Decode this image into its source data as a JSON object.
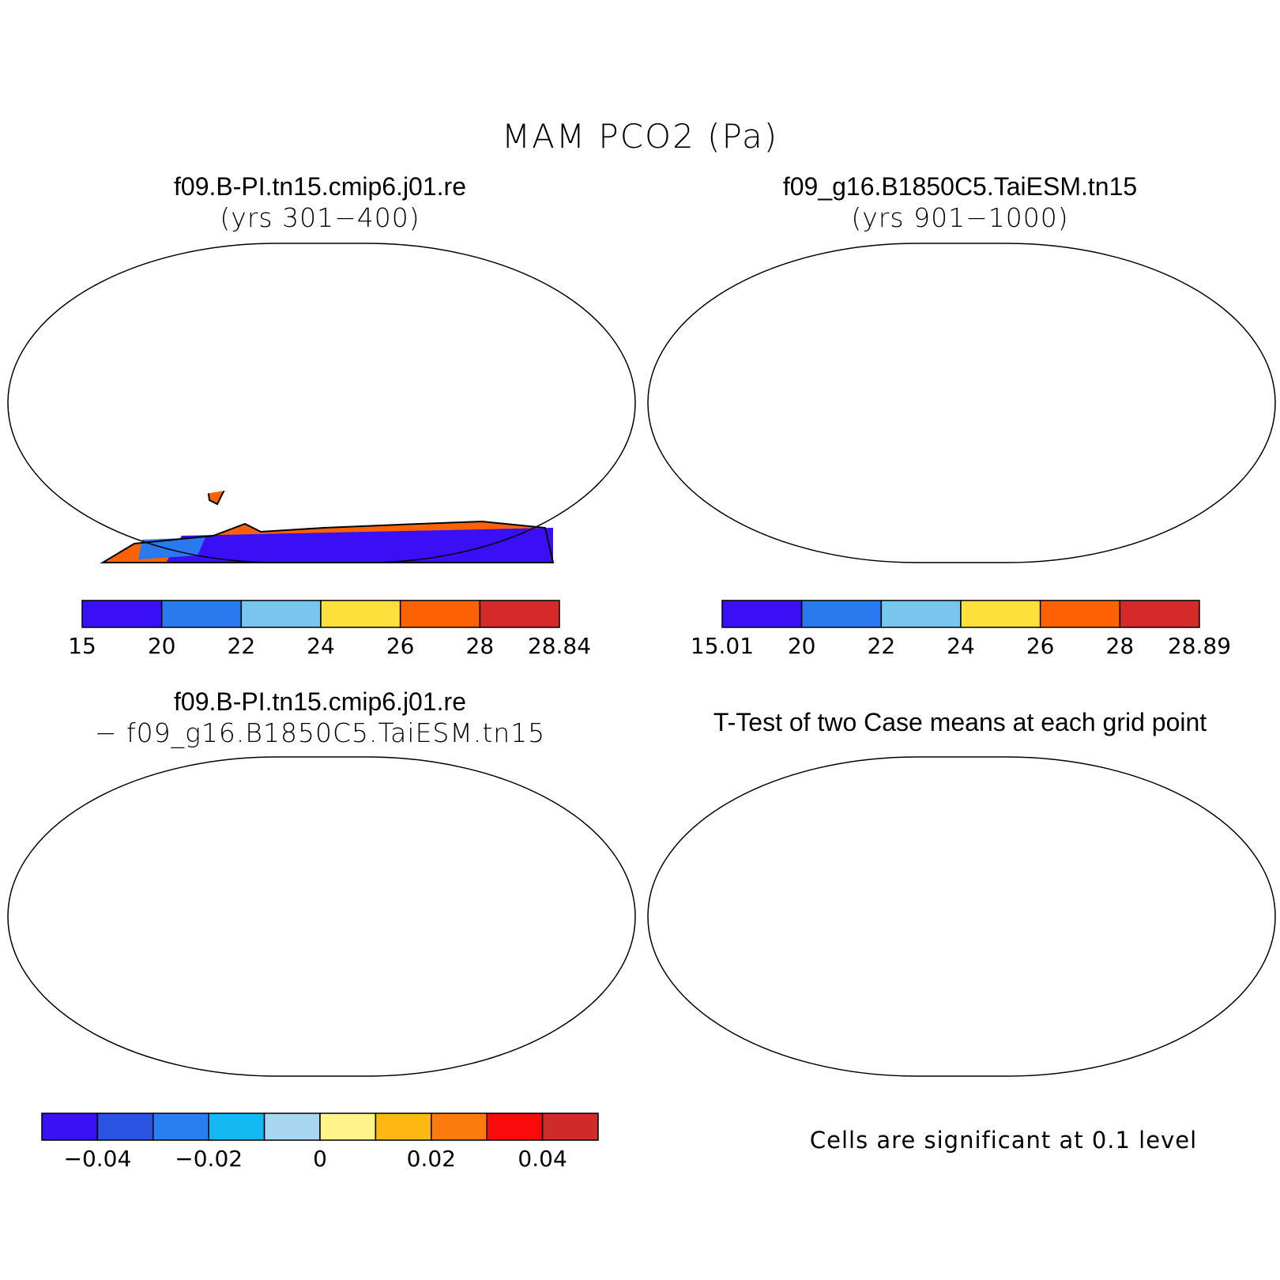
{
  "title": "MAM PCO2 (Pa)",
  "panels": [
    {
      "id": "case1",
      "title": "f09.B-PI.tn15.cmip6.j01.re",
      "subtitle": "(yrs 301−400)"
    },
    {
      "id": "case2",
      "title": "f09_g16.B1850C5.TaiESM.tn15",
      "subtitle": "(yrs 901−1000)"
    },
    {
      "id": "diff",
      "title": "f09.B-PI.tn15.cmip6.j01.re",
      "subtitle": "− f09_g16.B1850C5.TaiESM.tn15"
    },
    {
      "id": "ttest",
      "title": "T-Test of two Case means at each grid point",
      "subtitle": ""
    }
  ],
  "ttest_note": "Cells are significant at 0.1 level",
  "colors": {
    "mean_scale": [
      "#3b0ff5",
      "#2a79ee",
      "#78c6ee",
      "#fde13a",
      "#fc6203",
      "#d42a2a"
    ],
    "diff_scale": [
      "#3a10f5",
      "#2b52e0",
      "#2880f0",
      "#14b8f3",
      "#a9d7f1",
      "#fff38a",
      "#fdb813",
      "#fc7a0e",
      "#fb0a0a",
      "#d02b2b"
    ],
    "significant": "#fb0606"
  },
  "chart_data": [
    {
      "type": "map",
      "panel": "case1",
      "colorbar_labels": [
        "15",
        "20",
        "22",
        "24",
        "26",
        "28",
        "28.84"
      ],
      "levels": [
        15,
        20,
        22,
        24,
        26,
        28,
        28.84
      ]
    },
    {
      "type": "map",
      "panel": "case2",
      "colorbar_labels": [
        "15.01",
        "20",
        "22",
        "24",
        "26",
        "28",
        "28.89"
      ],
      "levels": [
        15.01,
        20,
        22,
        24,
        26,
        28,
        28.89
      ]
    },
    {
      "type": "map",
      "panel": "diff",
      "colorbar_labels": [
        "−0.04",
        "−0.02",
        "0",
        "0.02",
        "0.04"
      ],
      "levels": [
        -0.05,
        -0.04,
        -0.03,
        -0.02,
        -0.01,
        0,
        0.01,
        0.02,
        0.03,
        0.04,
        0.05
      ]
    },
    {
      "type": "map",
      "panel": "ttest",
      "significance_level": 0.1
    }
  ]
}
